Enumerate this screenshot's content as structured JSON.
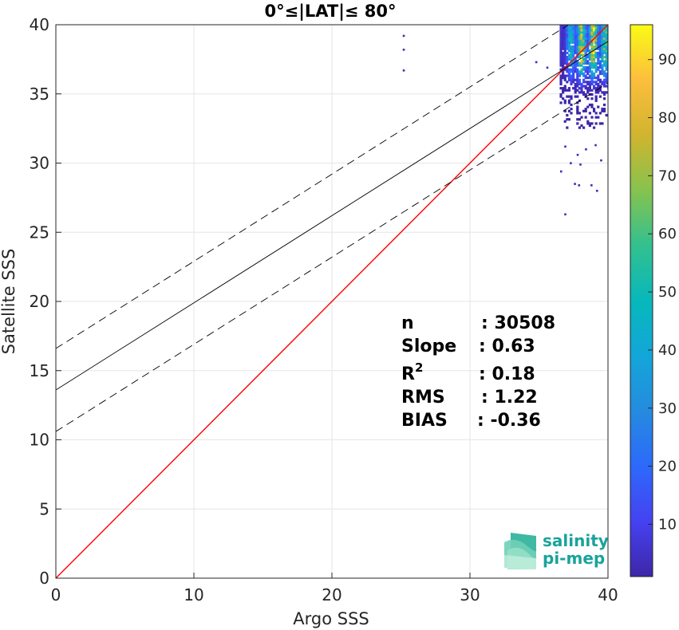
{
  "chart_data": {
    "type": "scatter",
    "title": "0°≤|LAT|≤ 80°",
    "xlabel": "Argo SSS",
    "ylabel": "Satellite SSS",
    "xlim": [
      0,
      40
    ],
    "ylim": [
      0,
      40
    ],
    "xticks": [
      "0",
      "10",
      "20",
      "30",
      "40"
    ],
    "yticks": [
      "0",
      "5",
      "10",
      "15",
      "20",
      "25",
      "30",
      "35",
      "40"
    ],
    "grid": true,
    "reference_lines": [
      {
        "role": "identity",
        "color": "#ff0000",
        "style": "solid",
        "x": [
          0,
          40
        ],
        "y": [
          0,
          40
        ]
      },
      {
        "role": "regression",
        "color": "#000000",
        "style": "solid",
        "x": [
          0,
          40
        ],
        "y": [
          13.6,
          38.8
        ]
      },
      {
        "role": "regression-upper",
        "color": "#000000",
        "style": "dashed",
        "x": [
          0,
          40
        ],
        "y": [
          16.6,
          41.8
        ]
      },
      {
        "role": "regression-lower",
        "color": "#000000",
        "style": "dashed",
        "x": [
          0,
          40
        ],
        "y": [
          10.6,
          35.8
        ]
      }
    ],
    "density": {
      "x_range": [
        36.5,
        40
      ],
      "y_range": [
        32.5,
        40
      ],
      "core_x": [
        38.0,
        39.3
      ],
      "core_y": [
        37.8,
        39.8
      ],
      "max_count": 96
    },
    "outliers": [
      {
        "x": 25.2,
        "y": 39.2
      },
      {
        "x": 25.2,
        "y": 38.2
      },
      {
        "x": 25.2,
        "y": 36.7
      },
      {
        "x": 37.8,
        "y": 30.6
      },
      {
        "x": 36.9,
        "y": 31.2
      },
      {
        "x": 38.4,
        "y": 31.0
      },
      {
        "x": 39.1,
        "y": 31.3
      },
      {
        "x": 37.3,
        "y": 30.0
      },
      {
        "x": 38.0,
        "y": 29.9
      },
      {
        "x": 36.6,
        "y": 29.4
      },
      {
        "x": 37.6,
        "y": 28.5
      },
      {
        "x": 38.8,
        "y": 28.4
      },
      {
        "x": 39.2,
        "y": 28.0
      },
      {
        "x": 37.9,
        "y": 28.4
      },
      {
        "x": 36.9,
        "y": 26.3
      },
      {
        "x": 34.8,
        "y": 37.3
      },
      {
        "x": 35.6,
        "y": 36.9
      },
      {
        "x": 39.5,
        "y": 30.2
      }
    ],
    "colorbar": {
      "min": 1,
      "max": 96,
      "ticks": [
        "10",
        "20",
        "30",
        "40",
        "50",
        "60",
        "70",
        "80",
        "90"
      ],
      "colormap": "parula"
    },
    "stats": [
      {
        "label": "n",
        "sup": "",
        "value": ": 30508"
      },
      {
        "label": "Slope",
        "sup": "",
        "value": ": 0.63"
      },
      {
        "label": "R",
        "sup": "2",
        "value": ": 0.18"
      },
      {
        "label": "RMS",
        "sup": "",
        "value": ": 1.22"
      },
      {
        "label": "BIAS",
        "sup": "",
        "value": ": -0.36"
      }
    ]
  },
  "logo": {
    "line1": "salinity",
    "line2": "pi-mep"
  }
}
